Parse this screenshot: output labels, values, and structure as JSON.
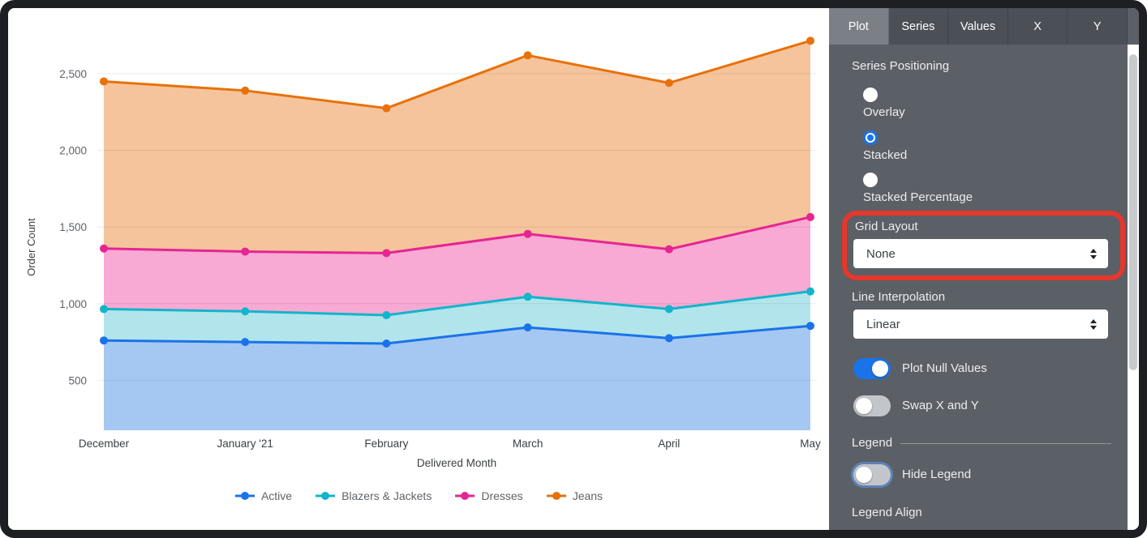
{
  "chart_data": {
    "type": "area",
    "stacked": true,
    "series_positioning": "Stacked",
    "x_categories": [
      "December",
      "January '21",
      "February",
      "March",
      "April",
      "May"
    ],
    "xlabel": "Delivered Month",
    "ylabel": "Order Count",
    "yticks": [
      500,
      1000,
      1500,
      2000,
      2500
    ],
    "ylim": [
      175,
      2875
    ],
    "grid": "horizontal",
    "legend_position": "bottom",
    "series": [
      {
        "name": "Active",
        "color": "#1A73E8",
        "fill": "#A5C8F2",
        "values": [
          760,
          750,
          740,
          845,
          775,
          855
        ],
        "cumulative": [
          760,
          750,
          740,
          845,
          775,
          855
        ]
      },
      {
        "name": "Blazers & Jackets",
        "color": "#12B5CB",
        "fill": "#B2E4EB",
        "values": [
          205,
          200,
          185,
          200,
          190,
          225
        ],
        "cumulative": [
          965,
          950,
          925,
          1045,
          965,
          1080
        ]
      },
      {
        "name": "Dresses",
        "color": "#E52592",
        "fill": "#F8A9D4",
        "values": [
          395,
          390,
          405,
          410,
          390,
          485
        ],
        "cumulative": [
          1360,
          1340,
          1330,
          1455,
          1355,
          1565
        ]
      },
      {
        "name": "Jeans",
        "color": "#E8710A",
        "fill": "#F5C49C",
        "values": [
          1090,
          1050,
          945,
          1165,
          1085,
          1150
        ],
        "cumulative": [
          2450,
          2390,
          2275,
          2620,
          2440,
          2715
        ]
      }
    ]
  },
  "panel": {
    "tabs": [
      {
        "label": "Plot",
        "active": true
      },
      {
        "label": "Series",
        "active": false
      },
      {
        "label": "Values",
        "active": false
      },
      {
        "label": "X",
        "active": false
      },
      {
        "label": "Y",
        "active": false
      }
    ],
    "series_positioning": {
      "label": "Series Positioning",
      "options": [
        {
          "label": "Overlay",
          "selected": false
        },
        {
          "label": "Stacked",
          "selected": true
        },
        {
          "label": "Stacked Percentage",
          "selected": false
        }
      ]
    },
    "grid_layout": {
      "label": "Grid Layout",
      "value": "None"
    },
    "line_interpolation": {
      "label": "Line Interpolation",
      "value": "Linear"
    },
    "toggles": [
      {
        "label": "Plot Null Values",
        "on": true
      },
      {
        "label": "Swap X and Y",
        "on": false
      }
    ],
    "legend_section": {
      "label": "Legend",
      "hide_legend": {
        "label": "Hide Legend",
        "on": false
      },
      "legend_align_label": "Legend Align"
    },
    "colors": {
      "accent_blue": "#1A73E8",
      "annotation_red": "#E5372C",
      "panel_bg": "#5B5F66",
      "tab_bg": "#4B4F56",
      "tab_active_bg": "#7B7F86"
    }
  }
}
